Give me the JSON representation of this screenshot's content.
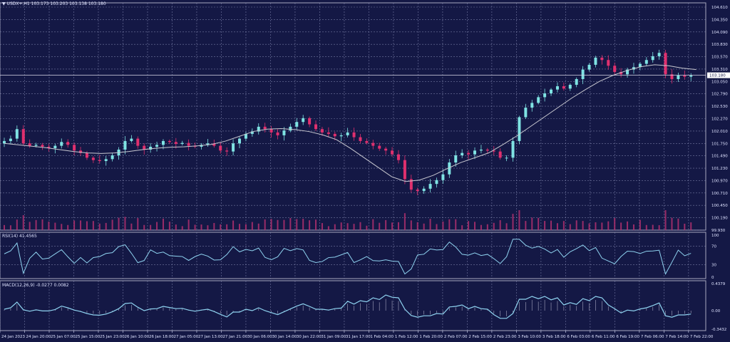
{
  "header": {
    "symbol_label": "USDX+,H1",
    "ohlc": "103.173 103.203 103.138 103.180",
    "menu_icon": "triangle-down-icon"
  },
  "colors": {
    "background": "#141845",
    "grid": "#8a8fb8",
    "bull": "#7fe3e3",
    "bear": "#e0306e",
    "ma_line": "#c8c8d0",
    "volume": "#b0306e",
    "rsi_line": "#8fd3f0",
    "macd_line": "#8fd3f0",
    "macd_hist": "#c9c9de",
    "separator": "#a8a8c0",
    "text": "#dfe3ff",
    "current_price_bg": "#ffffff"
  },
  "panels": {
    "rsi": {
      "label": "RSI(14) 41.4565",
      "levels": [
        "100",
        "70",
        "30",
        "0"
      ]
    },
    "macd": {
      "label": "MACD(12,26,9) -0.0277 0.0082",
      "levels": [
        "0.4379",
        "0.00",
        "-0.3432"
      ]
    }
  },
  "chart_data": {
    "type": "candlestick",
    "title": "USDX+,H1",
    "ohlc_header": {
      "open": 103.173,
      "high": 103.203,
      "low": 103.138,
      "close": 103.18
    },
    "current_price": "103.180",
    "y_ticks": [
      "104.610",
      "104.350",
      "104.090",
      "103.830",
      "103.570",
      "103.310",
      "103.050",
      "102.790",
      "102.530",
      "102.270",
      "102.010",
      "101.750",
      "101.490",
      "101.230",
      "100.970",
      "100.710",
      "100.450",
      "100.190",
      "99.930"
    ],
    "ylim": [
      99.93,
      104.61
    ],
    "x_ticks": [
      "24 Jan 2023",
      "24 Jan 20:00",
      "25 Jan 07:00",
      "25 Jan 15:00",
      "25 Jan 23:00",
      "26 Jan 10:00",
      "26 Jan 18:00",
      "27 Jan 05:00",
      "27 Jan 13:00",
      "27 Jan 21:00",
      "30 Jan 06:00",
      "30 Jan 14:00",
      "30 Jan 22:00",
      "31 Jan 09:00",
      "31 Jan 17:00",
      "1 Feb 04:00",
      "1 Feb 12:00",
      "1 Feb 20:00",
      "2 Feb 07:00",
      "2 Feb 15:00",
      "2 Feb 23:00",
      "3 Feb 10:00",
      "3 Feb 18:00",
      "6 Feb 03:00",
      "6 Feb 11:00",
      "6 Feb 19:00",
      "7 Feb 06:00",
      "7 Feb 14:00",
      "7 Feb 22:00"
    ],
    "price_path": [
      101.8,
      101.85,
      102.05,
      101.75,
      101.7,
      101.72,
      101.68,
      101.65,
      101.7,
      101.78,
      101.72,
      101.6,
      101.55,
      101.45,
      101.4,
      101.38,
      101.42,
      101.5,
      101.62,
      101.8,
      101.85,
      101.7,
      101.62,
      101.68,
      101.72,
      101.8,
      101.78,
      101.74,
      101.76,
      101.7,
      101.68,
      101.72,
      101.75,
      101.7,
      101.6,
      101.58,
      101.75,
      101.85,
      101.95,
      102.0,
      102.1,
      102.05,
      101.98,
      101.92,
      102.02,
      102.1,
      102.2,
      102.28,
      102.15,
      102.05,
      101.98,
      101.95,
      101.9,
      101.92,
      101.98,
      101.88,
      101.8,
      101.76,
      101.7,
      101.64,
      101.6,
      101.52,
      101.4,
      101.0,
      100.78,
      100.75,
      100.8,
      100.9,
      100.98,
      101.1,
      101.35,
      101.5,
      101.55,
      101.52,
      101.6,
      101.62,
      101.6,
      101.58,
      101.45,
      101.45,
      101.8,
      102.3,
      102.5,
      102.6,
      102.72,
      102.8,
      102.88,
      102.95,
      102.9,
      102.98,
      103.1,
      103.3,
      103.4,
      103.55,
      103.5,
      103.38,
      103.25,
      103.2,
      103.3,
      103.35,
      103.42,
      103.5,
      103.58,
      103.65,
      103.2,
      103.1,
      103.18,
      103.15,
      103.18
    ],
    "ma_path": [
      101.75,
      101.72,
      101.69,
      101.66,
      101.62,
      101.58,
      101.55,
      101.54,
      101.55,
      101.58,
      101.62,
      101.65,
      101.67,
      101.68,
      101.7,
      101.73,
      101.8,
      101.9,
      102.0,
      102.05,
      102.06,
      102.04,
      102.0,
      101.93,
      101.83,
      101.65,
      101.45,
      101.25,
      101.05,
      100.95,
      100.98,
      101.08,
      101.22,
      101.35,
      101.45,
      101.55,
      101.72,
      101.9,
      102.1,
      102.3,
      102.5,
      102.7,
      102.88,
      103.05,
      103.18,
      103.28,
      103.36,
      103.4,
      103.38,
      103.33,
      103.3
    ]
  },
  "price_axis_labels_visible": true
}
